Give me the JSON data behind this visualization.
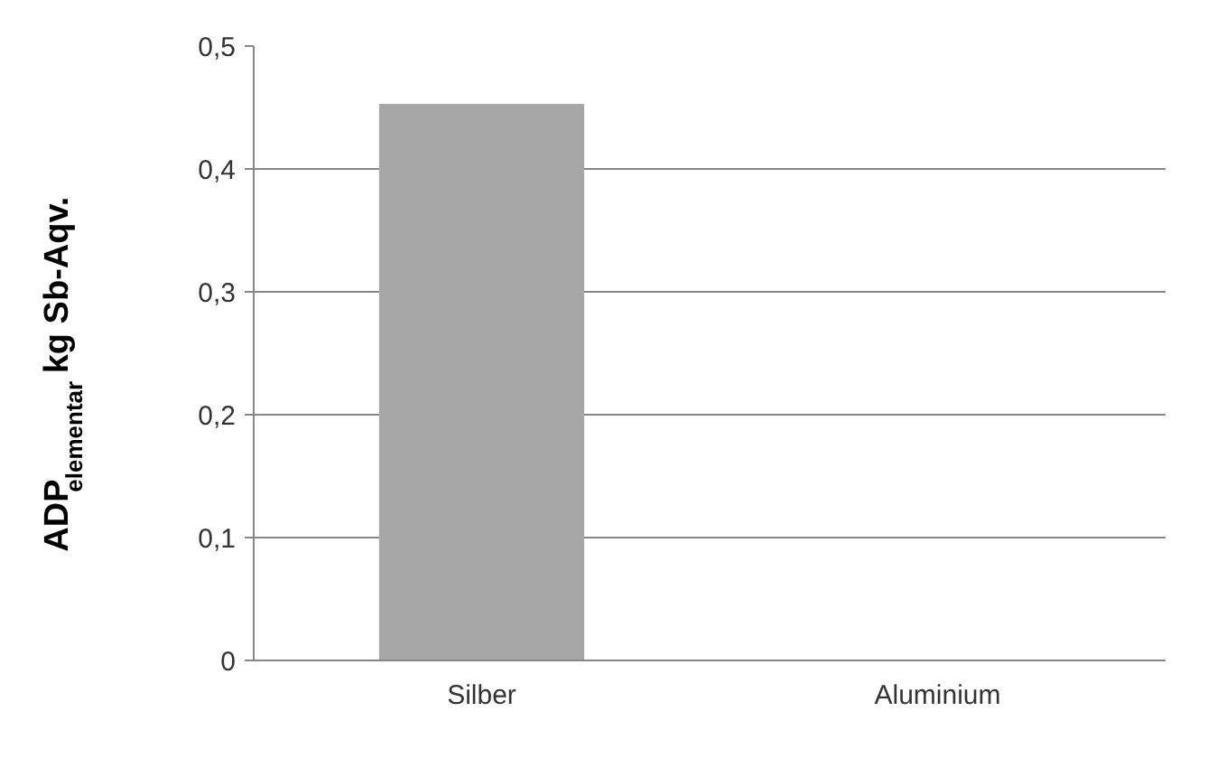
{
  "chart_data": {
    "type": "bar",
    "categories": [
      "Silber",
      "Aluminium"
    ],
    "values": [
      0.453,
      0
    ],
    "color": "#a6a6a6",
    "ylabel": "ADP$_{elementar}$ kg Sb-Aqv.",
    "ylim": [
      0,
      0.5
    ],
    "yticks": [
      0,
      {
        "value": 0.1,
        "label": "0,1"
      },
      {
        "value": 0.2,
        "label": "0,2"
      },
      {
        "value": 0.3,
        "label": "0,3"
      },
      {
        "value": 0.4,
        "label": "0,4"
      },
      {
        "value": 0.5,
        "label": "0,5"
      }
    ],
    "grid": "y"
  }
}
